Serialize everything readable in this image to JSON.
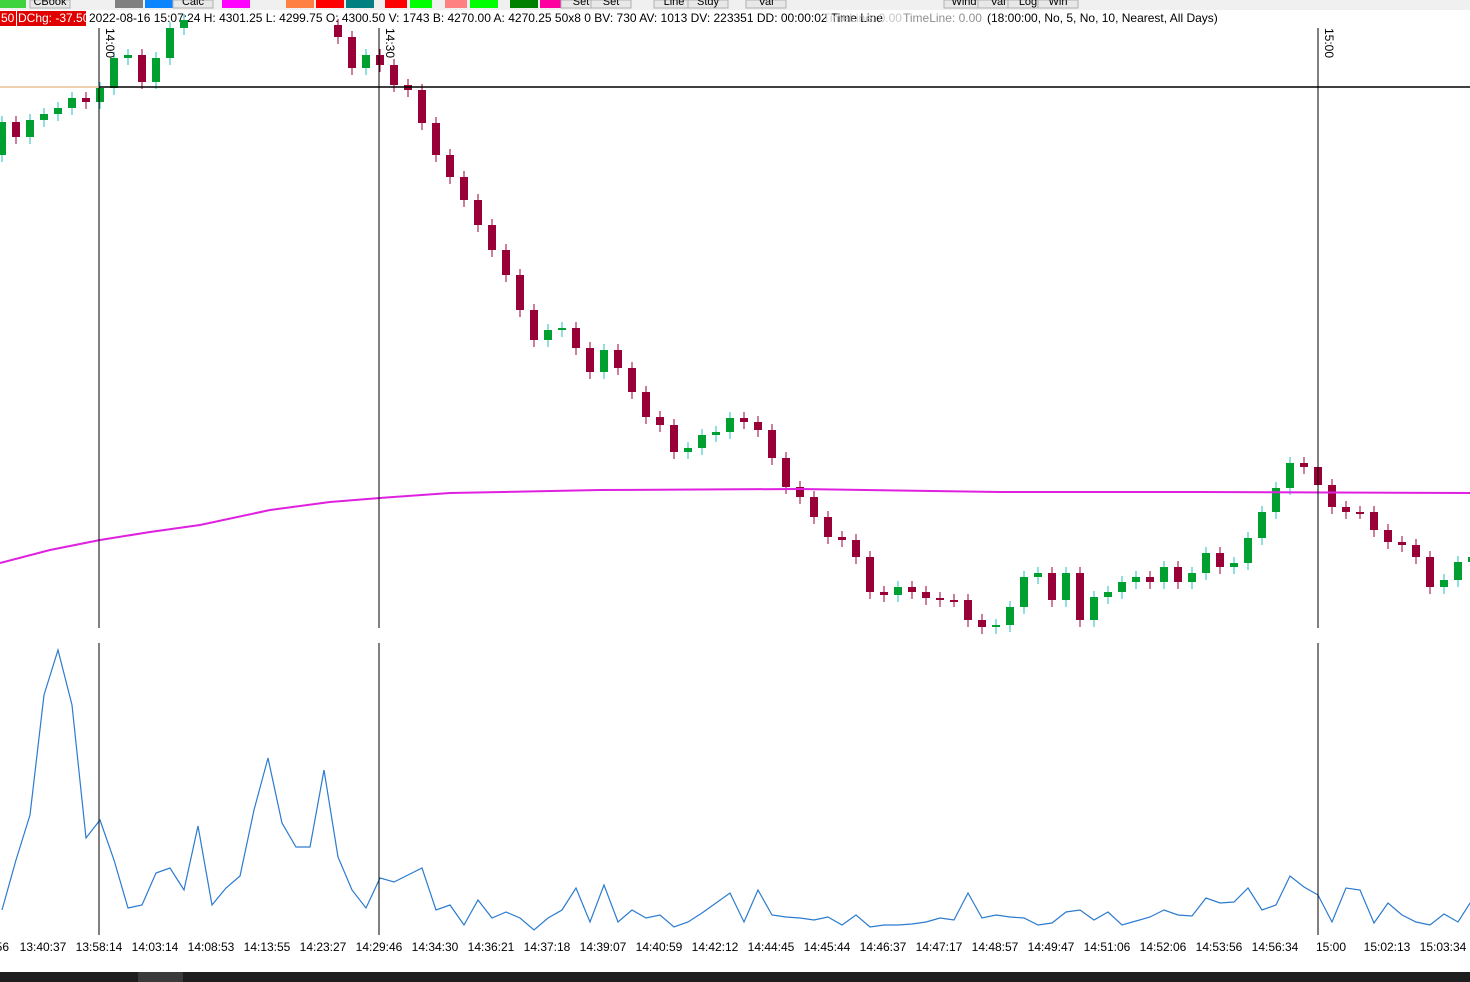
{
  "toolbar": {
    "buttons": [
      "CBook",
      "Calc",
      "Set",
      "Set",
      "Line",
      "Stdy",
      "Val",
      "Wind",
      "Val",
      "Log",
      "Win"
    ]
  },
  "status": {
    "prefix": "50",
    "dchg": "DChg: -37.50",
    "info": "2022-08-16 15:07:24 H: 4301.25 L: 4299.75 O: 4300.50 V: 1743 B: 4270.00 A: 4270.25 50x8 0 BV: 730 AV: 1013 DV: 223351 DD: 00:00:02 Time Line",
    "timeline_faded": "TimeLine: 0.00",
    "timeline": "TimeLine: 0.00",
    "settings": "(18:00:00, No, 5, No, 10, Nearest, All Days)"
  },
  "time_lines": [
    "14:00",
    "14:30",
    "15:00"
  ],
  "time_axis": [
    "56",
    "13:40:37",
    "13:58:14",
    "14:03:14",
    "14:08:53",
    "14:13:55",
    "14:23:27",
    "14:29:46",
    "14:34:30",
    "14:36:21",
    "14:37:18",
    "14:39:07",
    "14:40:59",
    "14:42:12",
    "14:44:45",
    "14:45:44",
    "14:46:37",
    "14:47:17",
    "14:48:57",
    "14:49:47",
    "14:51:06",
    "14:52:06",
    "14:53:56",
    "14:56:34",
    "15:00",
    "15:02:13",
    "15:03:34"
  ]
}
